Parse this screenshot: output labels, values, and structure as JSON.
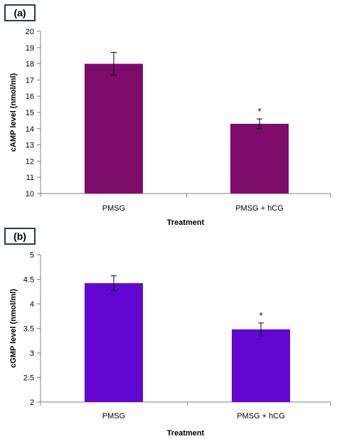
{
  "chart_data": [
    {
      "type": "bar",
      "panel_label": "(a)",
      "categories": [
        "PMSG",
        "PMSG + hCG"
      ],
      "values": [
        18.0,
        14.3
      ],
      "errors": [
        0.7,
        0.3
      ],
      "significance": [
        "",
        "*"
      ],
      "xlabel": "Treatment",
      "ylabel": "cAMP level (nmol/ml)",
      "ylim": [
        10,
        20
      ],
      "yticks": [
        10,
        11,
        12,
        13,
        14,
        15,
        16,
        17,
        18,
        19,
        20
      ],
      "bar_color": "#7e0c6c",
      "grid": false,
      "legend": "none"
    },
    {
      "type": "bar",
      "panel_label": "(b)",
      "categories": [
        "PMSG",
        "PMSG + hCG"
      ],
      "values": [
        4.42,
        3.48
      ],
      "errors": [
        0.15,
        0.13
      ],
      "significance": [
        "",
        "*"
      ],
      "xlabel": "Treatment",
      "ylabel": "cGMP level (nmol/ml)",
      "ylim": [
        2,
        5
      ],
      "yticks": [
        2,
        2.5,
        3,
        3.5,
        4,
        4.5,
        5
      ],
      "bar_color": "#6206d1",
      "grid": false,
      "legend": "none"
    }
  ]
}
